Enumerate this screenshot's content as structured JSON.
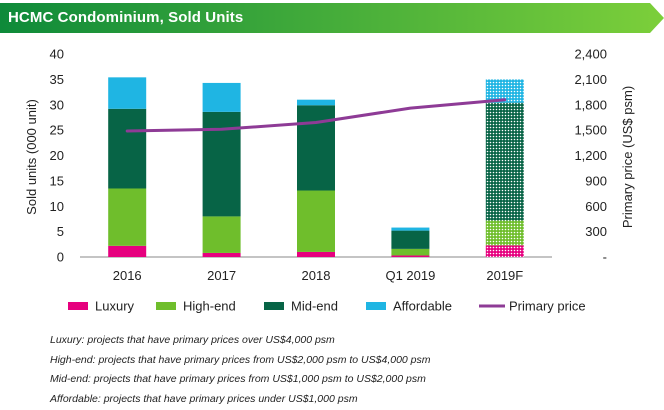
{
  "header": {
    "title": "HCMC Condominium, Sold Units"
  },
  "colors": {
    "banner_start": "#0e8a3a",
    "banner_end": "#7ccf3a",
    "luxury": "#e6007e",
    "high_end": "#6fbe2c",
    "mid_end": "#076446",
    "affordable": "#1fb5e3",
    "primary_price": "#8e3b96"
  },
  "chart_data": {
    "type": "bar",
    "stacked": true,
    "categories": [
      "2016",
      "2017",
      "2018",
      "Q1 2019",
      "2019F"
    ],
    "forecast_category": "2019F",
    "series": [
      {
        "name": "Luxury",
        "key": "luxury",
        "values": [
          2.2,
          0.8,
          1.0,
          0.3,
          2.3
        ]
      },
      {
        "name": "High-end",
        "key": "high_end",
        "values": [
          11.3,
          7.2,
          12.1,
          1.3,
          4.9
        ]
      },
      {
        "name": "Mid-end",
        "key": "mid_end",
        "values": [
          15.7,
          20.6,
          16.8,
          3.6,
          23.2
        ]
      },
      {
        "name": "Affordable",
        "key": "affordable",
        "values": [
          6.2,
          5.7,
          1.1,
          0.6,
          4.6
        ]
      }
    ],
    "line_series": {
      "name": "Primary price",
      "key": "primary_price",
      "axis": "right",
      "values": [
        1490,
        1510,
        1590,
        1760,
        1860
      ]
    },
    "ylabel": "Sold units (000 unit)",
    "ylabel_right": "Primary price (US$ psm)",
    "ylim": [
      0,
      40
    ],
    "ylim_right": [
      0,
      2400
    ],
    "yticks": [
      "0",
      "5",
      "10",
      "15",
      "20",
      "25",
      "30",
      "35",
      "40"
    ],
    "yticks_right": [
      "-",
      "300",
      "600",
      "900",
      "1,200",
      "1,500",
      "1,800",
      "2,100",
      "2,400"
    ],
    "grid": false,
    "legend_position": "bottom"
  },
  "notes": [
    "Luxury: projects that have primary prices over US$4,000 psm",
    "High-end: projects that have primary prices from US$2,000 psm to US$4,000 psm",
    "Mid-end: projects that have primary prices from US$1,000 psm to US$2,000 psm",
    "Affordable: projects that have primary prices under US$1,000 psm"
  ]
}
